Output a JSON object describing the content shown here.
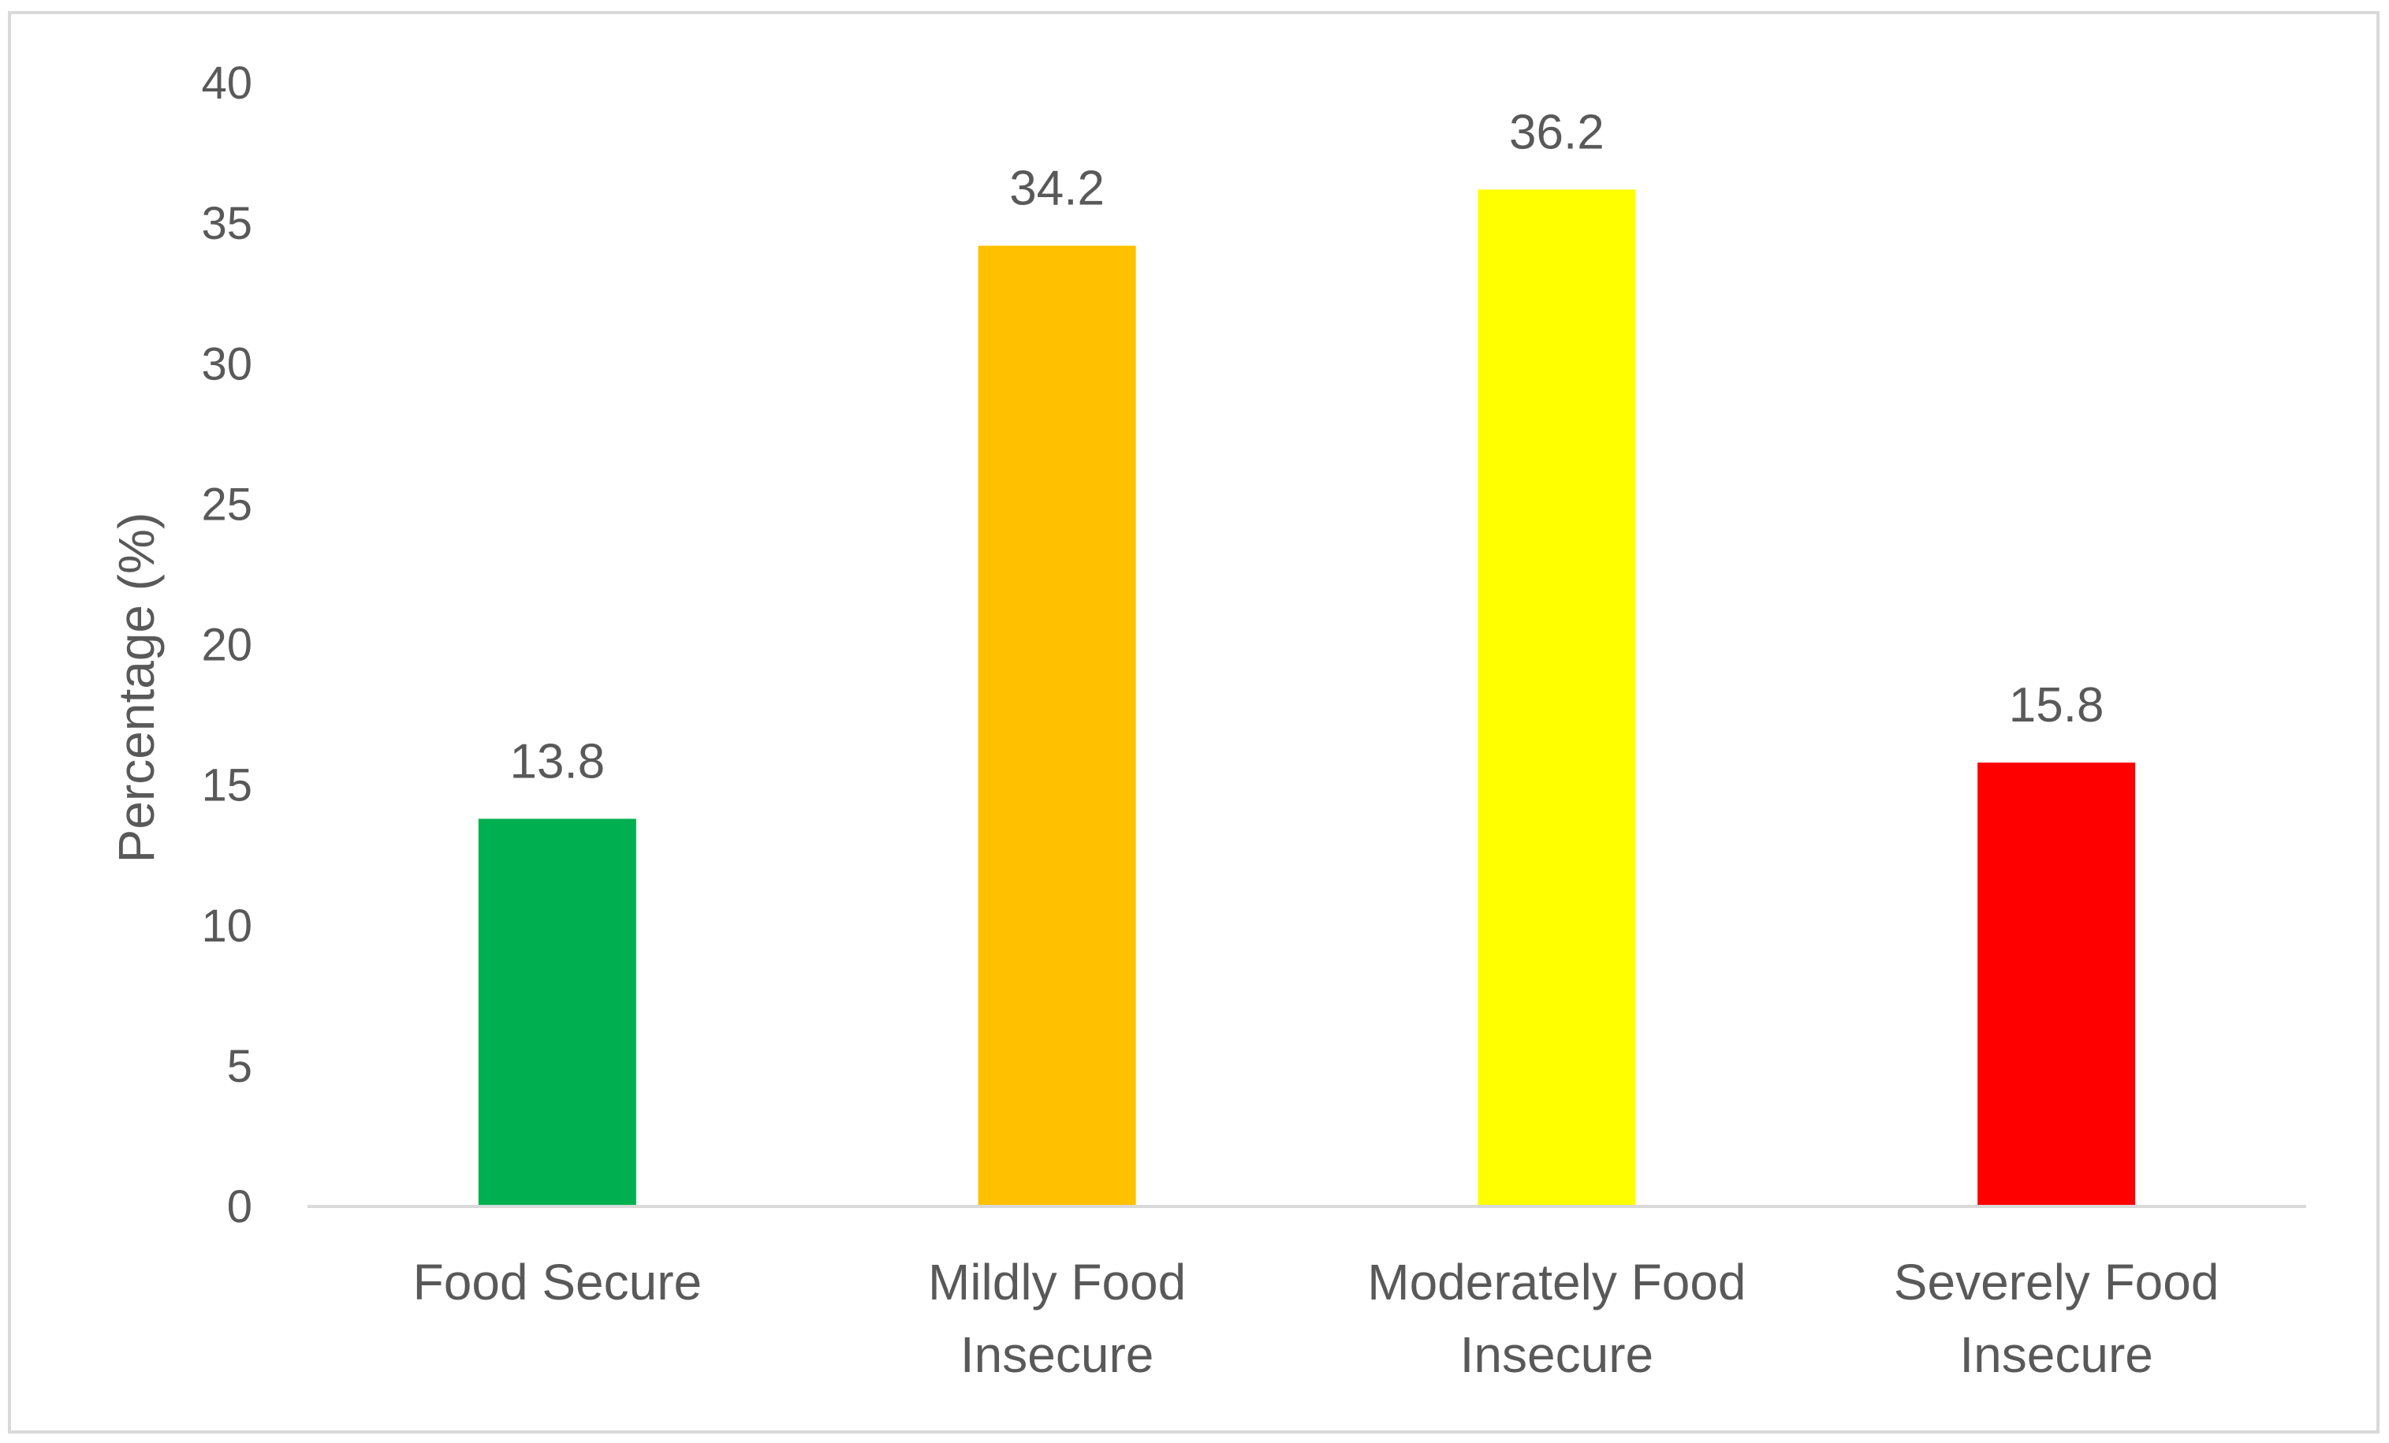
{
  "chart_data": {
    "type": "bar",
    "title": "",
    "xlabel": "",
    "ylabel": "Percentage (%)",
    "ylim": [
      0,
      40
    ],
    "ytick_step": 5,
    "yticks": [
      "0",
      "5",
      "10",
      "15",
      "20",
      "25",
      "30",
      "35",
      "40"
    ],
    "grid": false,
    "legend": "none",
    "categories": [
      [
        "Food Secure"
      ],
      [
        "Mildly Food",
        "Insecure"
      ],
      [
        "Moderately Food",
        "Insecure"
      ],
      [
        "Severely Food",
        "Insecure"
      ]
    ],
    "values": [
      13.8,
      34.2,
      36.2,
      15.8
    ],
    "data_labels": [
      "13.8",
      "34.2",
      "36.2",
      "15.8"
    ],
    "bar_colors": [
      "#00B050",
      "#FFC000",
      "#FFFF00",
      "#FF0000"
    ],
    "axis_color": "#D9D9D9",
    "border_color": "#D9D9D9"
  }
}
